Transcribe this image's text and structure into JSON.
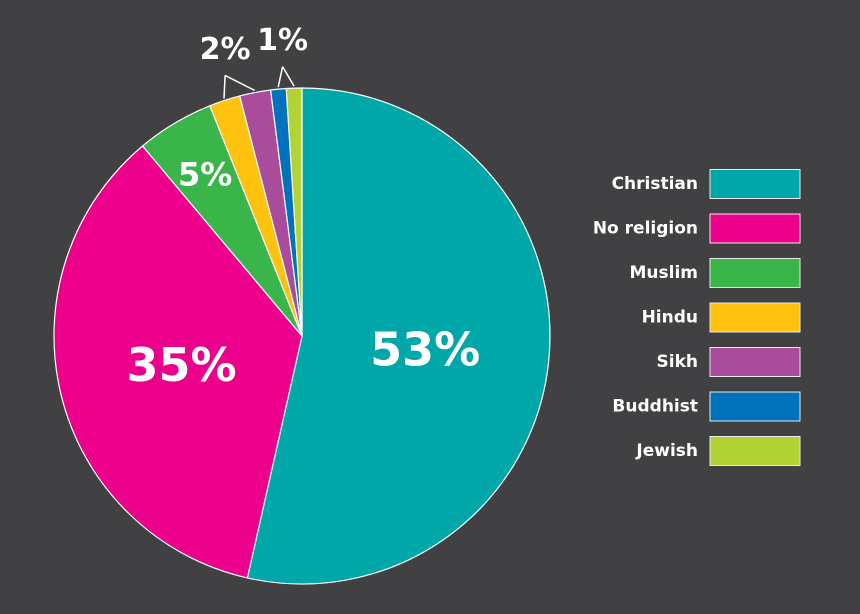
{
  "chart_data": {
    "type": "pie",
    "title": "",
    "slices": [
      {
        "name": "Christian",
        "value": 53,
        "color": "#00a7a8"
      },
      {
        "name": "No religion",
        "value": 35,
        "color": "#ec008b"
      },
      {
        "name": "Muslim",
        "value": 5,
        "color": "#39b54a"
      },
      {
        "name": "Hindu",
        "value": 2,
        "color": "#ffc20e"
      },
      {
        "name": "Sikh",
        "value": 2,
        "color": "#a84c9b"
      },
      {
        "name": "Buddhist",
        "value": 1,
        "color": "#0072bc"
      },
      {
        "name": "Jewish",
        "value": 1,
        "color": "#b2d235"
      }
    ],
    "data_labels": [
      {
        "text": "53%",
        "slices": [
          "Christian"
        ]
      },
      {
        "text": "35%",
        "slices": [
          "No religion"
        ]
      },
      {
        "text": "5%",
        "slices": [
          "Muslim"
        ]
      },
      {
        "text": "2%",
        "slices": [
          "Hindu",
          "Sikh"
        ]
      },
      {
        "text": "1%",
        "slices": [
          "Buddhist",
          "Jewish"
        ]
      }
    ],
    "legend": {
      "placement": "right",
      "entries": [
        "Christian",
        "No religion",
        "Muslim",
        "Hindu",
        "Sikh",
        "Buddhist",
        "Jewish"
      ]
    }
  }
}
